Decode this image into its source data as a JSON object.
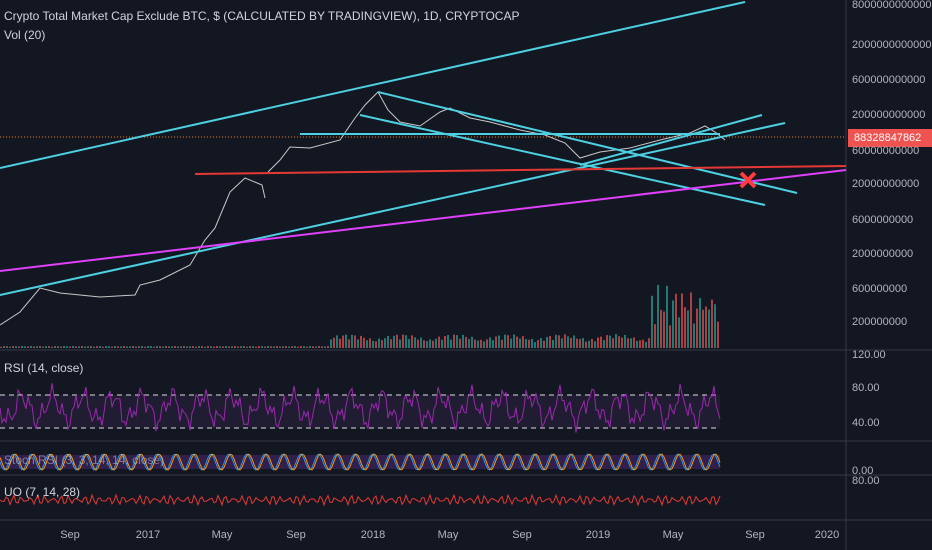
{
  "header": {
    "title": "Crypto Total Market Cap Exclude BTC, $ (CALCULATED BY TRADINGVIEW), 1D, CRYPTOCAP",
    "volume": "Vol (20)"
  },
  "price_axis": {
    "labels": [
      "8000000000000",
      "2000000000000",
      "600000000000",
      "200000000000",
      "60000000000",
      "20000000000",
      "6000000000",
      "2000000000",
      "600000000",
      "200000000"
    ],
    "last_price": "88328847862"
  },
  "panes": {
    "rsi": {
      "title": "RSI (14, close)",
      "labels": [
        "120.00",
        "80.00",
        "40.00"
      ]
    },
    "stoch": {
      "title": "Stoch RSI (3, 3, 14, 14, close)",
      "labels": [
        "0.00"
      ]
    },
    "uo": {
      "title": "UO (7, 14, 28)",
      "labels": [
        "80.00"
      ]
    }
  },
  "time_axis": {
    "labels": [
      "Sep",
      "2017",
      "May",
      "Sep",
      "2018",
      "May",
      "Sep",
      "2019",
      "May",
      "Sep",
      "2020"
    ]
  }
}
